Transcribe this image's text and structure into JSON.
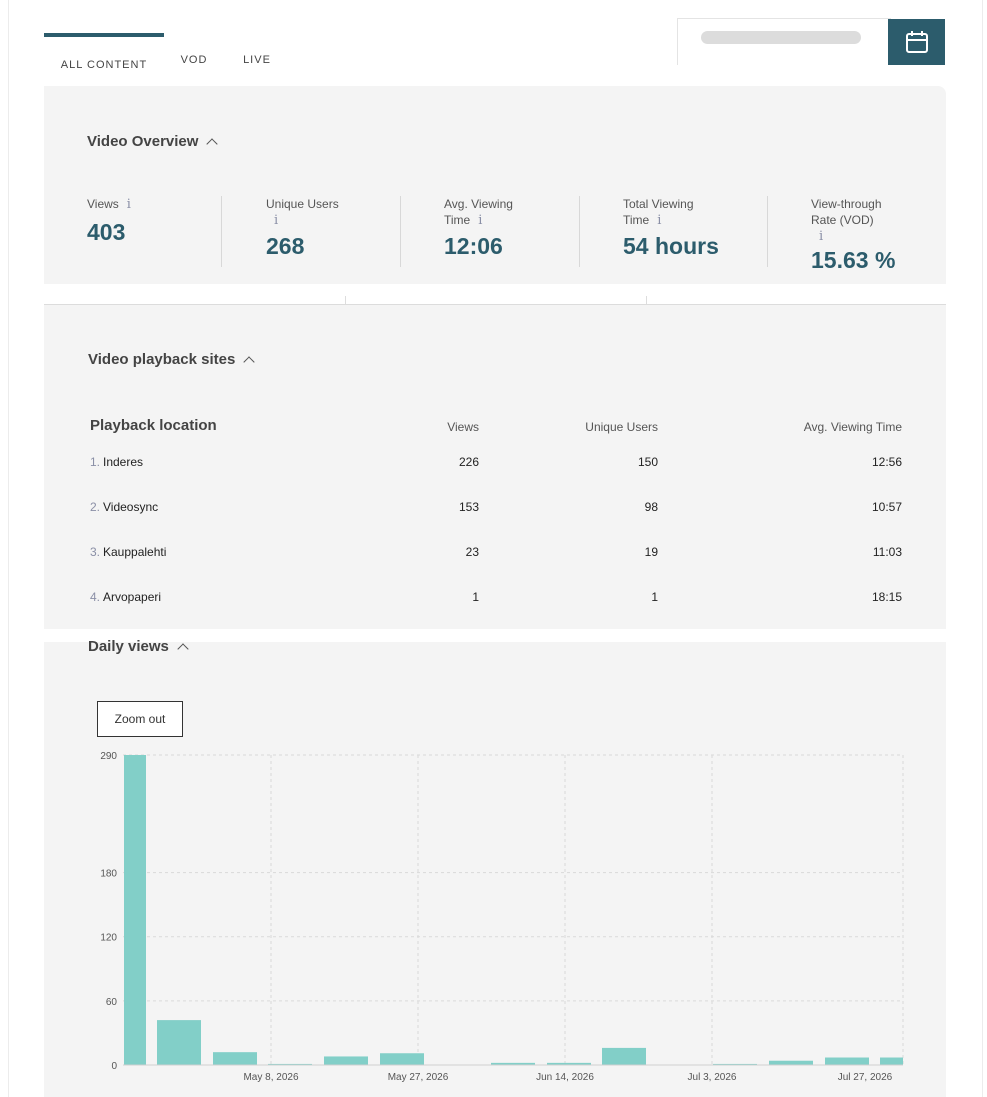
{
  "tabs": [
    "ALL CONTENT",
    "VOD",
    "LIVE"
  ],
  "overview": {
    "title": "Video Overview",
    "metrics": [
      {
        "label": [
          "Views"
        ],
        "value": "403"
      },
      {
        "label": [
          "Unique Users"
        ],
        "value": "268"
      },
      {
        "label": [
          "Avg. Viewing",
          "Time"
        ],
        "value": "12:06"
      },
      {
        "label": [
          "Total Viewing",
          "Time"
        ],
        "value": "54 hours"
      },
      {
        "label": [
          "View-through",
          "Rate (VOD)"
        ],
        "value": "15.63 %"
      }
    ],
    "info_glyph": "i"
  },
  "playback": {
    "title": "Video playback sites",
    "headers": [
      "Playback location",
      "Views",
      "Unique Users",
      "Avg. Viewing Time"
    ],
    "rows": [
      {
        "rank": "1.",
        "name": "Inderes",
        "views": "226",
        "users": "150",
        "time": "12:56"
      },
      {
        "rank": "2.",
        "name": "Videosync",
        "views": "153",
        "users": "98",
        "time": "10:57"
      },
      {
        "rank": "3.",
        "name": "Kauppalehti",
        "views": "23",
        "users": "19",
        "time": "11:03"
      },
      {
        "rank": "4.",
        "name": "Arvopaperi",
        "views": "1",
        "users": "1",
        "time": "18:15"
      }
    ]
  },
  "daily": {
    "title": "Daily views",
    "zoom_label": "Zoom out"
  },
  "chart_data": {
    "type": "bar",
    "title": "",
    "xlabel": "",
    "ylabel": "",
    "color": "#82cfc8",
    "yticks": [
      0,
      60,
      120,
      180,
      290
    ],
    "xticks": [
      "May 8, 2026",
      "May 27, 2026",
      "Jun 14, 2026",
      "Jul 3, 2026",
      "Jul 27, 2026"
    ],
    "grid": true,
    "values": [
      290,
      42,
      12,
      1,
      8,
      11,
      0,
      2,
      2,
      16,
      0,
      1,
      4,
      7,
      7
    ]
  },
  "icons": {
    "calendar": "calendar-icon"
  }
}
